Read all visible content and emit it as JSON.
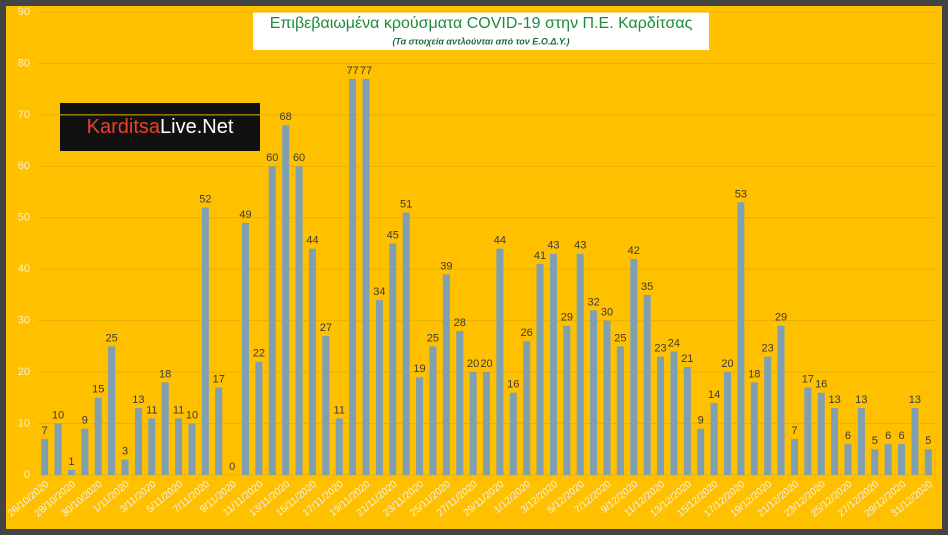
{
  "chart_data": {
    "type": "bar",
    "title": "Επιβεβαιωμένα κρούσματα COVID-19 στην Π.Ε. Καρδίτσας",
    "subtitle": "(Τα στοιχεία αντλούνται από τον Ε.Ο.Δ.Υ.)",
    "logo": [
      "Karditsa",
      "Live.Net"
    ],
    "color": "#7f9fb3",
    "grid": true,
    "ylim": [
      0,
      90
    ],
    "yticks": [
      0,
      10,
      20,
      30,
      40,
      50,
      60,
      70,
      80,
      90
    ],
    "categories": [
      "26/10/2020",
      null,
      "28/10/2020",
      null,
      "30/10/2020",
      null,
      "1/11/2020",
      null,
      "3/11/2020",
      null,
      "5/11/2020",
      null,
      "7/11/2020",
      null,
      "9/11/2020",
      null,
      "11/11/2020",
      null,
      "13/11/2020",
      null,
      "15/11/2020",
      null,
      "17/11/2020",
      null,
      "19/11/2020",
      null,
      "21/11/2020",
      null,
      "23/11/2020",
      null,
      "25/11/2020",
      null,
      "27/11/2020",
      null,
      "29/11/2020",
      null,
      "1/12/2020",
      null,
      "3/12/2020",
      null,
      "5/12/2020",
      null,
      "7/12/2020",
      null,
      "9/12/2020",
      null,
      "11/12/2020",
      null,
      "13/12/2020",
      null,
      "15/12/2020",
      null,
      "17/12/2020",
      null,
      "19/12/2020",
      null,
      "21/12/2020",
      null,
      "23/12/2020",
      null,
      "25/12/2020",
      null,
      "27/12/2020",
      null,
      "29/12/2020",
      null,
      "31/12/2020"
    ],
    "values": [
      7,
      10,
      1,
      9,
      15,
      25,
      3,
      13,
      11,
      18,
      11,
      10,
      52,
      17,
      0,
      49,
      22,
      60,
      68,
      60,
      44,
      27,
      11,
      77,
      77,
      34,
      45,
      51,
      19,
      25,
      39,
      28,
      20,
      20,
      44,
      16,
      26,
      41,
      43,
      29,
      43,
      32,
      30,
      25,
      42,
      35,
      23,
      24,
      21,
      9,
      14,
      20,
      53,
      18,
      23,
      29,
      7,
      17,
      16,
      13,
      6,
      13,
      5,
      6,
      6,
      13,
      5
    ]
  }
}
